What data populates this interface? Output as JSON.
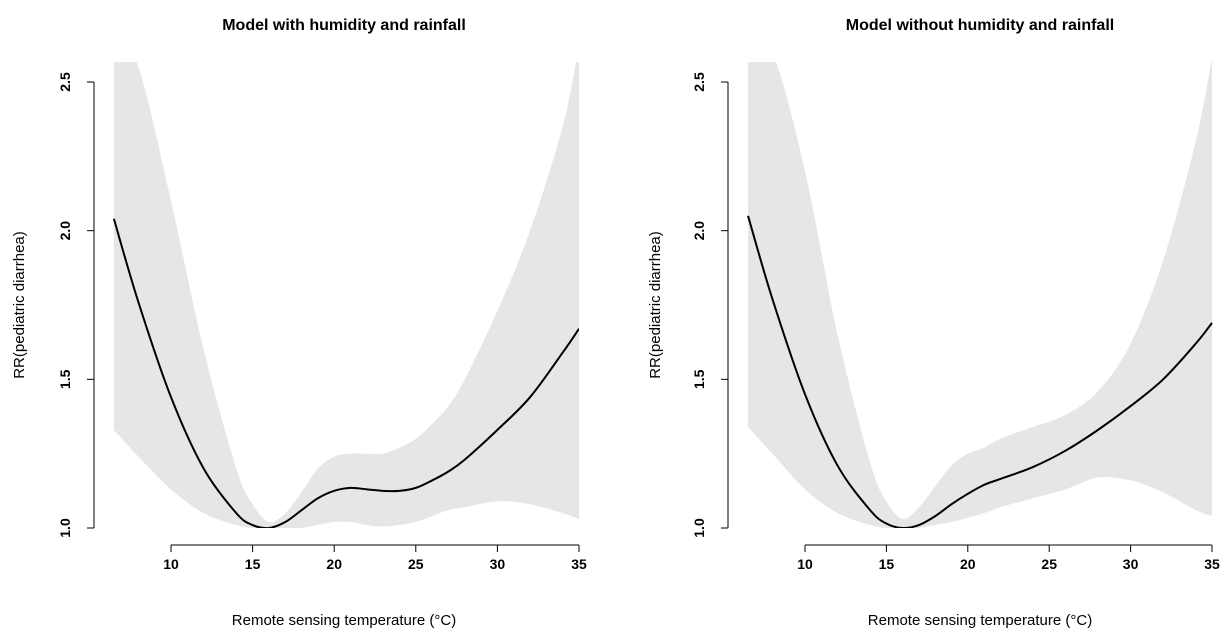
{
  "chart_data": [
    {
      "type": "line",
      "title": "Model with humidity and rainfall",
      "xlabel": "Remote sensing temperature (°C)",
      "ylabel": "RR(pediatric diarrhea)",
      "xlim": [
        5.5,
        35
      ],
      "ylim": [
        1.0,
        2.5
      ],
      "xticks": [
        10,
        15,
        20,
        25,
        30,
        35
      ],
      "yticks": [
        1.0,
        1.5,
        2.0,
        2.5
      ],
      "grid": false,
      "line_color": "#000000",
      "band_color": "#e6e6e6",
      "series": [
        {
          "x": [
            6.5,
            8,
            10,
            12,
            14,
            15,
            16,
            17,
            18,
            19,
            20,
            21,
            22,
            23,
            24,
            25,
            26,
            27,
            28,
            30,
            32,
            34,
            35
          ],
          "y": [
            2.04,
            1.76,
            1.44,
            1.2,
            1.05,
            1.01,
            1.0,
            1.02,
            1.06,
            1.1,
            1.125,
            1.135,
            1.13,
            1.125,
            1.125,
            1.135,
            1.16,
            1.19,
            1.23,
            1.33,
            1.44,
            1.59,
            1.67
          ],
          "lower": [
            1.33,
            1.24,
            1.13,
            1.05,
            1.01,
            1.0,
            1.0,
            1.0,
            1.0,
            1.01,
            1.02,
            1.02,
            1.01,
            1.005,
            1.01,
            1.02,
            1.04,
            1.06,
            1.07,
            1.09,
            1.08,
            1.05,
            1.03
          ],
          "upper": [
            2.65,
            2.55,
            2.1,
            1.6,
            1.2,
            1.08,
            1.02,
            1.05,
            1.12,
            1.2,
            1.24,
            1.25,
            1.25,
            1.25,
            1.27,
            1.3,
            1.35,
            1.41,
            1.5,
            1.73,
            2.0,
            2.35,
            2.62
          ]
        }
      ]
    },
    {
      "type": "line",
      "title": "Model without humidity and rainfall",
      "xlabel": "Remote sensing temperature (°C)",
      "ylabel": "RR(pediatric diarrhea)",
      "xlim": [
        5.5,
        35
      ],
      "ylim": [
        1.0,
        2.5
      ],
      "xticks": [
        10,
        15,
        20,
        25,
        30,
        35
      ],
      "yticks": [
        1.0,
        1.5,
        2.0,
        2.5
      ],
      "grid": false,
      "line_color": "#000000",
      "band_color": "#e6e6e6",
      "series": [
        {
          "x": [
            6.5,
            8,
            10,
            12,
            14,
            15,
            16,
            17,
            18,
            19,
            20,
            21,
            22,
            24,
            26,
            28,
            30,
            32,
            34,
            35
          ],
          "y": [
            2.05,
            1.77,
            1.45,
            1.21,
            1.06,
            1.015,
            1.0,
            1.01,
            1.04,
            1.08,
            1.115,
            1.145,
            1.165,
            1.205,
            1.26,
            1.33,
            1.41,
            1.5,
            1.62,
            1.69
          ],
          "lower": [
            1.34,
            1.25,
            1.13,
            1.05,
            1.01,
            1.0,
            1.0,
            1.0,
            1.01,
            1.02,
            1.035,
            1.05,
            1.07,
            1.1,
            1.13,
            1.17,
            1.16,
            1.12,
            1.06,
            1.04
          ],
          "upper": [
            2.65,
            2.6,
            2.2,
            1.65,
            1.22,
            1.09,
            1.03,
            1.07,
            1.14,
            1.21,
            1.25,
            1.27,
            1.3,
            1.34,
            1.38,
            1.46,
            1.62,
            1.9,
            2.3,
            2.58
          ]
        }
      ]
    }
  ]
}
